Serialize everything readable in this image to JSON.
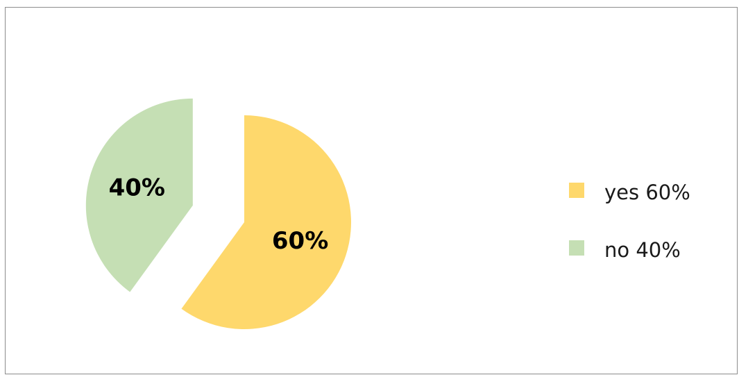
{
  "chart_data": {
    "type": "pie",
    "slices": [
      {
        "label": "yes",
        "value": 60,
        "value_label": "60%",
        "legend": "yes 60%",
        "color": "#FED86C",
        "exploded": false
      },
      {
        "label": "no",
        "value": 40,
        "value_label": "40%",
        "legend": "no 40%",
        "color": "#C5DFB4",
        "exploded": true
      }
    ],
    "legend_position": "right",
    "start_angle": "12 o'clock, clockwise"
  }
}
